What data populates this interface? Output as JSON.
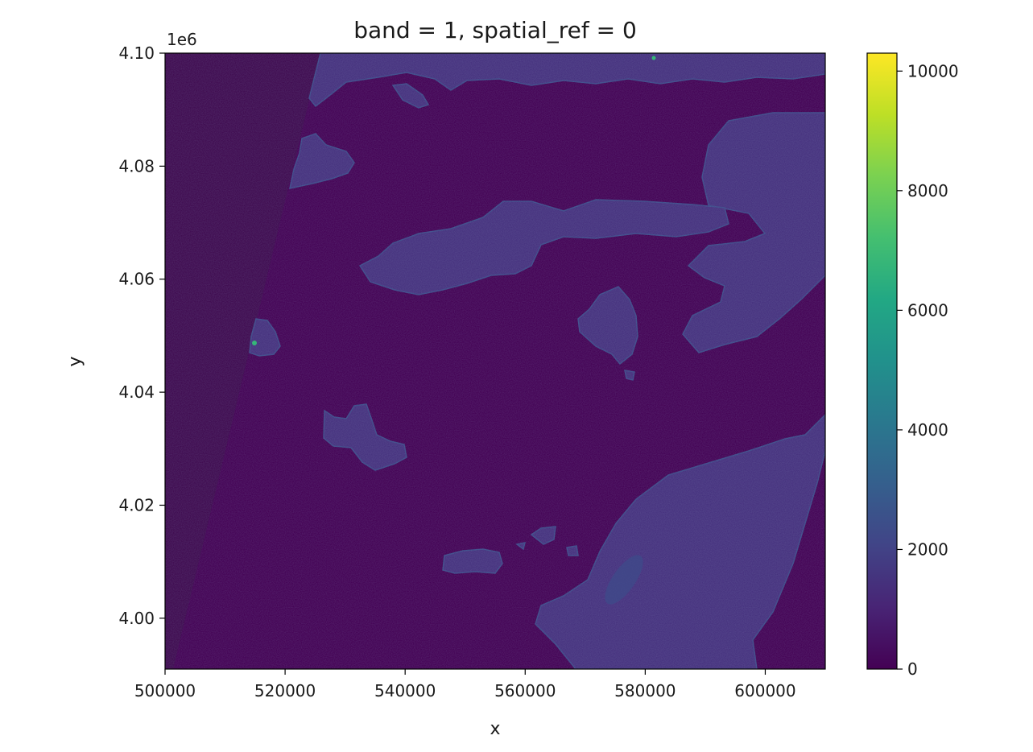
{
  "chart_data": {
    "type": "heatmap",
    "title": "band = 1, spatial_ref = 0",
    "xlabel": "x",
    "ylabel": "y",
    "y_offset_label": "1e6",
    "xlim": [
      500000,
      610000
    ],
    "ylim": [
      3991000,
      4100000
    ],
    "x_ticks": [
      500000,
      520000,
      540000,
      560000,
      580000,
      600000
    ],
    "x_tick_labels": [
      "500000",
      "520000",
      "540000",
      "560000",
      "580000",
      "600000"
    ],
    "y_ticks": [
      4000000,
      4020000,
      4040000,
      4060000,
      4080000,
      4100000
    ],
    "y_tick_labels": [
      "4.00",
      "4.02",
      "4.04",
      "4.06",
      "4.08",
      "4.10"
    ],
    "colorbar": {
      "colormap": "viridis",
      "range": [
        0,
        10300
      ],
      "ticks": [
        0,
        2000,
        4000,
        6000,
        8000,
        10000
      ],
      "tick_labels": [
        "0",
        "2000",
        "4000",
        "6000",
        "8000",
        "10000"
      ]
    },
    "colors": {
      "background_value": "#440154",
      "nodata": "#3f0a4f",
      "land_low": "#46317e",
      "land_mid": "#3e4a89",
      "land_high": "#2c728e",
      "hot": "#35b779",
      "max": "#fde725"
    },
    "grid": false
  }
}
